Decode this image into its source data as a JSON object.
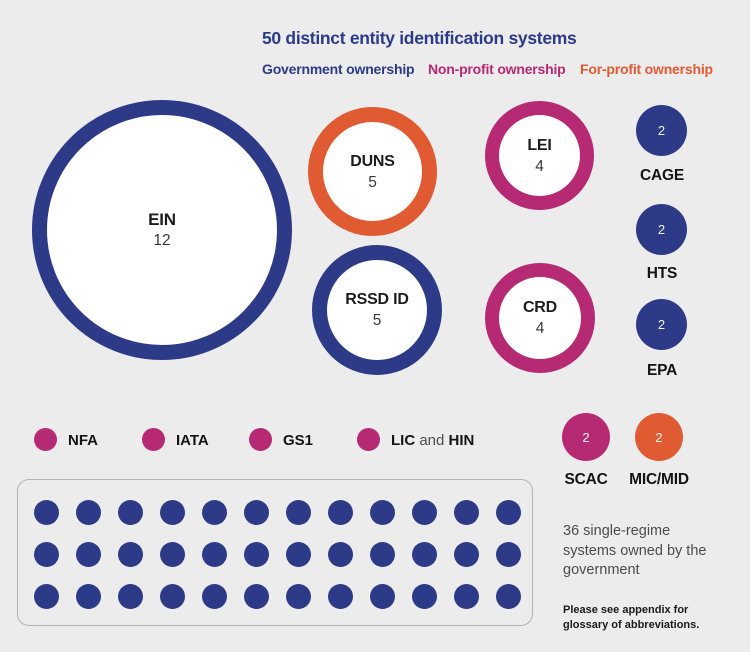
{
  "colors": {
    "government": "#2c3a87",
    "nonprofit": "#b62a73",
    "forprofit": "#e05a32",
    "background": "#ececec"
  },
  "title": "50 distinct entity identification systems",
  "legend": {
    "government": "Government ownership",
    "nonprofit": "Non-profit ownership",
    "forprofit": "For-profit ownership"
  },
  "bubbles": {
    "ein": {
      "label": "EIN",
      "value": "12"
    },
    "duns": {
      "label": "DUNS",
      "value": "5"
    },
    "rssd": {
      "label": "RSSD ID",
      "value": "5"
    },
    "lei": {
      "label": "LEI",
      "value": "4"
    },
    "crd": {
      "label": "CRD",
      "value": "4"
    }
  },
  "badges": {
    "cage": {
      "value": "2",
      "label": "CAGE"
    },
    "hts": {
      "value": "2",
      "label": "HTS"
    },
    "epa": {
      "value": "2",
      "label": "EPA"
    },
    "scac": {
      "value": "2",
      "label": "SCAC"
    },
    "micmid": {
      "value": "2",
      "label": "MIC/MID"
    }
  },
  "dot_legend": {
    "nfa": {
      "label": "NFA"
    },
    "iata": {
      "label": "IATA"
    },
    "gs1": {
      "label": "GS1"
    },
    "lic_hin": {
      "lic": "LIC",
      "and": "and",
      "hin": "HIN"
    }
  },
  "grid": {
    "count": 36,
    "rows": 3,
    "cols": 12
  },
  "caption": "36 single-regime systems owned by the government",
  "footnote": "Please see appendix for glossary of abbreviations.",
  "chart_data": {
    "type": "bubble",
    "title": "50 distinct entity identification systems",
    "legend_entries": [
      "Government ownership",
      "Non-profit ownership",
      "For-profit ownership"
    ],
    "legend_position": "top",
    "series": [
      {
        "name": "EIN",
        "value": 12,
        "ownership": "government"
      },
      {
        "name": "DUNS",
        "value": 5,
        "ownership": "for-profit"
      },
      {
        "name": "RSSD ID",
        "value": 5,
        "ownership": "government"
      },
      {
        "name": "LEI",
        "value": 4,
        "ownership": "non-profit"
      },
      {
        "name": "CRD",
        "value": 4,
        "ownership": "non-profit"
      },
      {
        "name": "CAGE",
        "value": 2,
        "ownership": "government"
      },
      {
        "name": "HTS",
        "value": 2,
        "ownership": "government"
      },
      {
        "name": "EPA",
        "value": 2,
        "ownership": "government"
      },
      {
        "name": "SCAC",
        "value": 2,
        "ownership": "non-profit"
      },
      {
        "name": "MIC/MID",
        "value": 2,
        "ownership": "for-profit"
      },
      {
        "name": "NFA",
        "value": null,
        "ownership": "non-profit"
      },
      {
        "name": "IATA",
        "value": null,
        "ownership": "non-profit"
      },
      {
        "name": "GS1",
        "value": null,
        "ownership": "non-profit"
      },
      {
        "name": "LIC and HIN",
        "value": null,
        "ownership": "non-profit"
      },
      {
        "name": "Single-regime government systems",
        "value": 36,
        "ownership": "government"
      }
    ],
    "annotations": [
      "36 single-regime systems owned by the government",
      "Please see appendix for glossary of abbreviations."
    ]
  }
}
